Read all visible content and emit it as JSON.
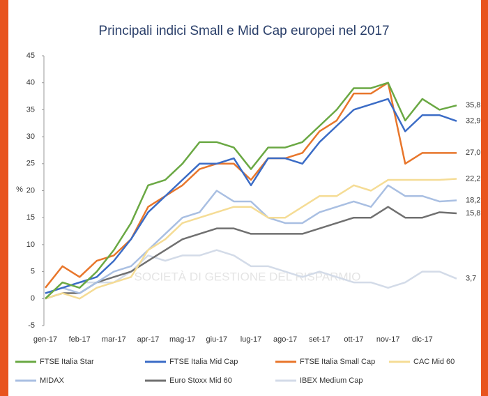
{
  "chart_data": {
    "type": "line",
    "title": "Principali indici Small e Mid Cap europei nel 2017",
    "y_label": "%",
    "watermark": "SOCIETÀ DI GESTIONE DEL RISPARMIO",
    "categories": [
      "gen-17",
      null,
      "feb-17",
      null,
      "mar-17",
      null,
      "apr-17",
      null,
      "mag-17",
      null,
      "giu-17",
      null,
      "lug-17",
      null,
      "ago-17",
      null,
      "set-17",
      null,
      "ott-17",
      null,
      "nov-17",
      null,
      "dic-17",
      null,
      null
    ],
    "ylim": [
      -5,
      45
    ],
    "yticks": [
      -5,
      0,
      5,
      10,
      15,
      20,
      25,
      30,
      35,
      40,
      45
    ],
    "grid": false,
    "series": [
      {
        "name": "FTSE Italia Star",
        "color": "#6aa843",
        "values": [
          0,
          3,
          2,
          5,
          9,
          14,
          21,
          22,
          25,
          29,
          29,
          28,
          24,
          28,
          28,
          29,
          32,
          35,
          39,
          39,
          40,
          33,
          37,
          35,
          35.8
        ],
        "end_label": "35,8"
      },
      {
        "name": "FTSE Italia Mid Cap",
        "color": "#3b6cc6",
        "values": [
          1,
          2,
          3,
          4,
          7,
          11,
          16,
          19,
          22,
          25,
          25,
          26,
          21,
          26,
          26,
          25,
          29,
          32,
          35,
          36,
          37,
          31,
          34,
          34,
          32.9
        ],
        "end_label": "32,9"
      },
      {
        "name": "FTSE Italia Small Cap",
        "color": "#e8762b",
        "values": [
          2,
          6,
          4,
          7,
          8,
          11,
          17,
          19,
          21,
          24,
          25,
          25,
          22,
          26,
          26,
          27,
          31,
          33,
          38,
          38,
          40,
          25,
          27,
          27,
          27.0
        ],
        "end_label": "27,0"
      },
      {
        "name": "CAC Mid 60",
        "color": "#f5dc95",
        "values": [
          0,
          1,
          0,
          2,
          3,
          4,
          9,
          11,
          14,
          15,
          16,
          17,
          17,
          15,
          15,
          17,
          19,
          19,
          21,
          20,
          22,
          22,
          22,
          22,
          22.2
        ],
        "end_label": "22,2"
      },
      {
        "name": "MIDAX",
        "color": "#a9bfe2",
        "values": [
          1,
          2,
          1,
          3,
          5,
          6,
          9,
          12,
          15,
          16,
          20,
          18,
          18,
          15,
          14,
          14,
          16,
          17,
          18,
          17,
          21,
          19,
          19,
          18,
          18.2
        ],
        "end_label": "18,2"
      },
      {
        "name": "Euro Stoxx Mid 60",
        "color": "#707070",
        "values": [
          0,
          1,
          1,
          3,
          4,
          5,
          7,
          9,
          11,
          12,
          13,
          13,
          12,
          12,
          12,
          12,
          13,
          14,
          15,
          15,
          17,
          15,
          15,
          16,
          15.8
        ],
        "end_label": "15,8"
      },
      {
        "name": "IBEX Medium Cap",
        "color": "#d3dbe8",
        "values": [
          1,
          2,
          3,
          3,
          3,
          5,
          8,
          7,
          8,
          8,
          9,
          8,
          6,
          6,
          5,
          4,
          5,
          4,
          3,
          3,
          2,
          3,
          5,
          5,
          3.7
        ],
        "end_label": "3,7"
      }
    ]
  }
}
